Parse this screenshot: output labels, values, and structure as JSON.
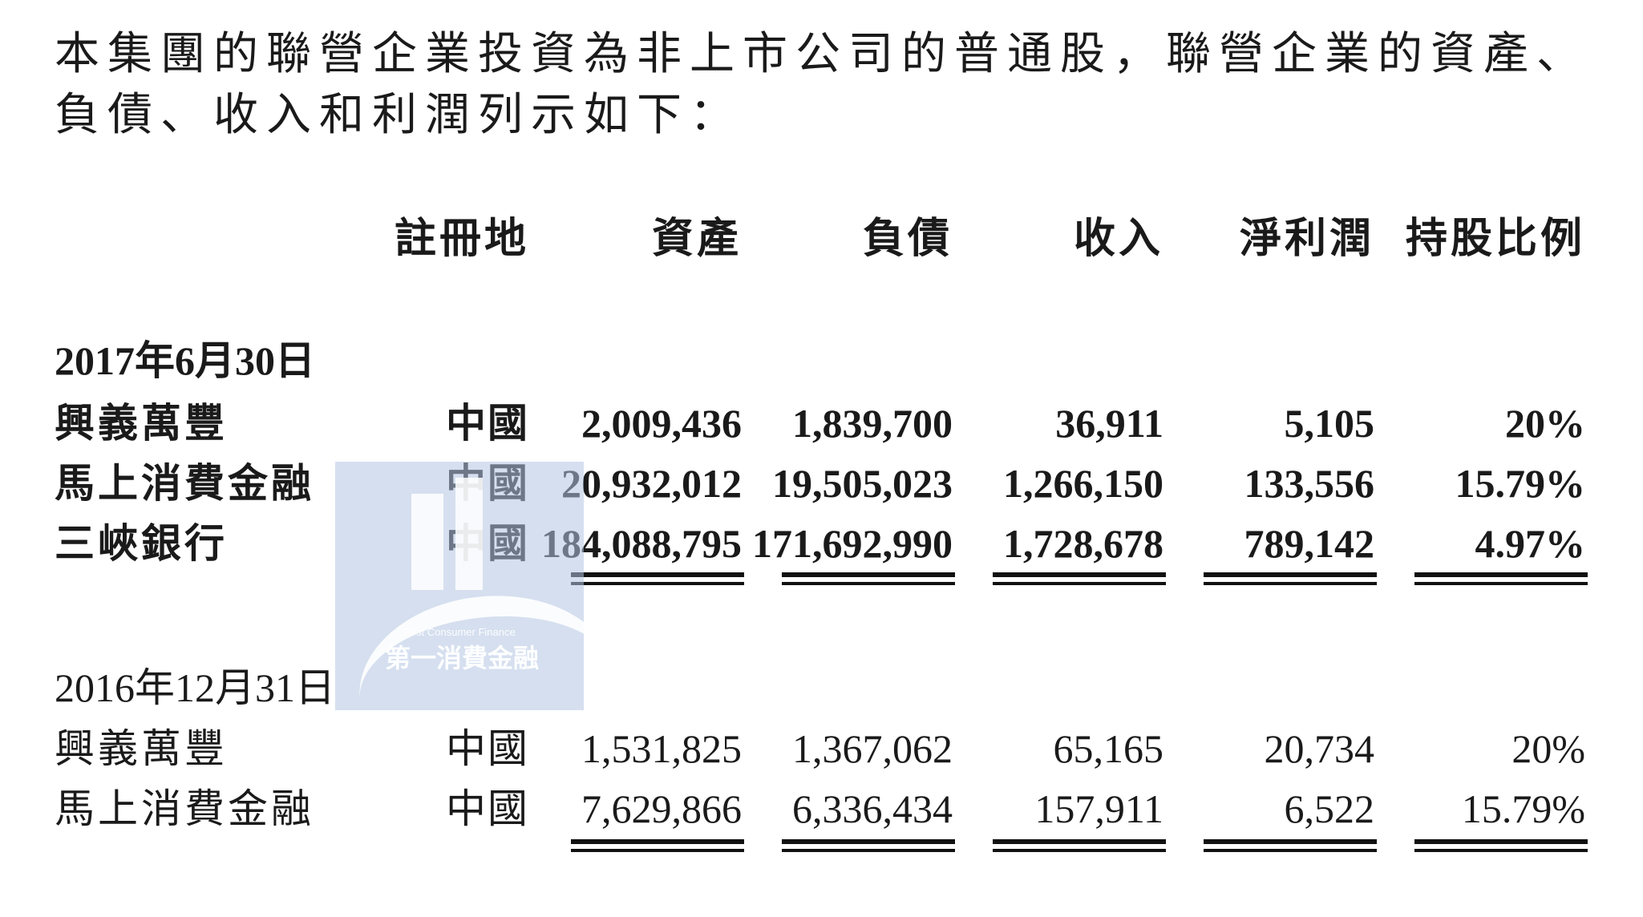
{
  "intro_text": "本集團的聯營企業投資為非上市公司的普通股，聯營企業的資產、負債、收入和利潤列示如下：",
  "columns": {
    "place": "註冊地",
    "assets": "資產",
    "liabilities": "負債",
    "revenue": "收入",
    "net_profit": "淨利潤",
    "shareholding": "持股比例"
  },
  "sections": [
    {
      "date": "2017年6月30日",
      "rows": [
        {
          "name": "興義萬豐",
          "place": "中國",
          "assets": "2,009,436",
          "liabilities": "1,839,700",
          "revenue": "36,911",
          "net_profit": "5,105",
          "shareholding": "20%"
        },
        {
          "name": "馬上消費金融",
          "place": "中國",
          "assets": "20,932,012",
          "liabilities": "19,505,023",
          "revenue": "1,266,150",
          "net_profit": "133,556",
          "shareholding": "15.79%"
        },
        {
          "name": "三峽銀行",
          "place": "中國",
          "assets": "184,088,795",
          "liabilities": "171,692,990",
          "revenue": "1,728,678",
          "net_profit": "789,142",
          "shareholding": "4.97%"
        }
      ]
    },
    {
      "date": "2016年12月31日",
      "rows": [
        {
          "name": "興義萬豐",
          "place": "中國",
          "assets": "1,531,825",
          "liabilities": "1,367,062",
          "revenue": "65,165",
          "net_profit": "20,734",
          "shareholding": "20%"
        },
        {
          "name": "馬上消費金融",
          "place": "中國",
          "assets": "7,629,866",
          "liabilities": "6,336,434",
          "revenue": "157,911",
          "net_profit": "6,522",
          "shareholding": "15.79%"
        }
      ]
    }
  ],
  "watermark": {
    "en": "First Consumer Finance",
    "zh": "第一消費金融"
  }
}
